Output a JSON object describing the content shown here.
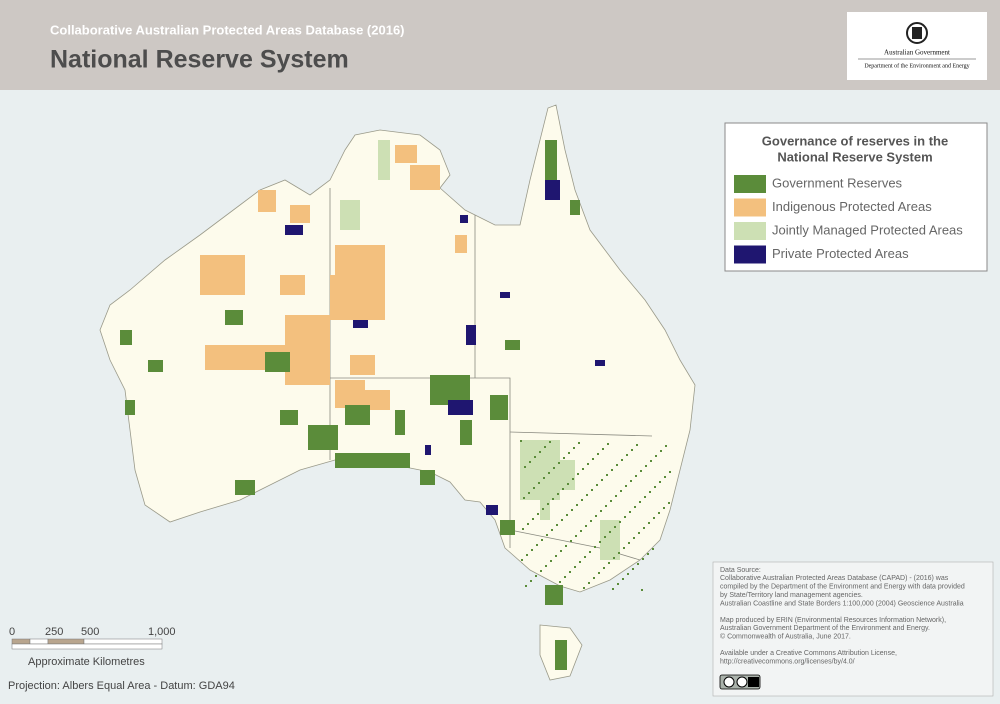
{
  "header": {
    "subtitle": "Collaborative Australian Protected Areas Database (2016)",
    "title": "National Reserve System"
  },
  "logo": {
    "line1": "Australian Government",
    "line2": "Department of the Environment and Energy"
  },
  "legend": {
    "title_lines": [
      "Governance of reserves in the",
      "National Reserve System"
    ],
    "items": [
      {
        "label": "Government Reserves",
        "color": "#5b8c3a"
      },
      {
        "label": "Indigenous Protected Areas",
        "color": "#f3c07e"
      },
      {
        "label": "Jointly Managed Protected Areas",
        "color": "#cde0b4"
      },
      {
        "label": "Private Protected Areas",
        "color": "#1f1670"
      }
    ]
  },
  "scale_bar": {
    "ticks": [
      "0",
      "250",
      "500",
      "1,000"
    ],
    "caption": "Approximate Kilometres"
  },
  "projection": "Projection: Albers Equal Area - Datum: GDA94",
  "source": {
    "paragraphs": [
      [
        "Data Source:",
        "Collaborative Australian Protected Areas Database (CAPAD) - (2016) was",
        "compiled by the Department of the Environment and Energy with data provided",
        "by State/Territory land management agencies.",
        "Australian Coastline and State Borders 1:100,000 (2004) Geoscience Australia"
      ],
      [
        "Map produced by ERIN (Environmental Resources Information Network),",
        "Australian Government Department of the Environment and Energy.",
        "© Commonwealth of Australia, June 2017."
      ],
      [
        "Available under a Creative Commons Attribution License,",
        "http://creativecommons.org/licenses/by/4.0/"
      ]
    ]
  }
}
